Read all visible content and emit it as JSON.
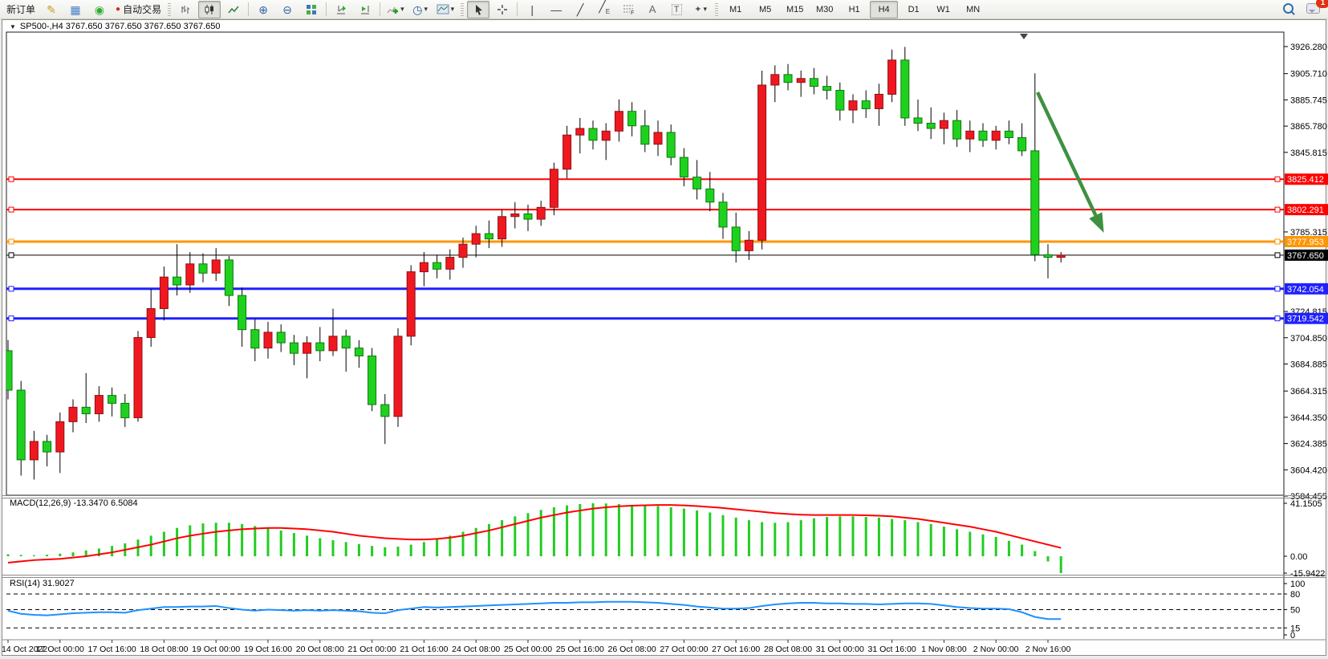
{
  "toolbar": {
    "new_order_label": "新订单",
    "autotrading_label": "自动交易",
    "timeframes": [
      "M1",
      "M5",
      "M15",
      "M30",
      "H1",
      "H4",
      "D1",
      "W1",
      "MN"
    ],
    "active_timeframe": "H4",
    "notification_badge": "1"
  },
  "chart_window": {
    "title": "SP500-,H4  3767.650 3767.650 3767.650 3767.650"
  },
  "chart_data": {
    "type": "candlestick",
    "symbol": "SP500-",
    "timeframe": "H4",
    "colors": {
      "up_candle": "#F01820",
      "down_candle": "#1FD11F",
      "macd_histogram": "#22CC22",
      "macd_signal": "#FF0000",
      "rsi_line": "#1E90FF",
      "arrow": "#3F9142"
    },
    "price_axis_ticks": [
      "3926.280",
      "3905.710",
      "3885.745",
      "3865.780",
      "3845.815",
      "3785.315",
      "3724.815",
      "3704.850",
      "3684.885",
      "3664.315",
      "3644.350",
      "3624.385",
      "3604.420",
      "3584.455"
    ],
    "time_axis_labels": [
      "14 Oct 2022",
      "17 Oct 00:00",
      "17 Oct 16:00",
      "18 Oct 08:00",
      "19 Oct 00:00",
      "19 Oct 16:00",
      "20 Oct 08:00",
      "21 Oct 00:00",
      "21 Oct 16:00",
      "24 Oct 08:00",
      "25 Oct 00:00",
      "25 Oct 16:00",
      "26 Oct 08:00",
      "27 Oct 00:00",
      "27 Oct 16:00",
      "28 Oct 08:00",
      "31 Oct 00:00",
      "31 Oct 16:00",
      "1 Nov 08:00",
      "2 Nov 00:00",
      "2 Nov 16:00"
    ],
    "bars_per_label": 4,
    "ohlc": [
      [
        3695,
        3703,
        3658,
        3665
      ],
      [
        3665,
        3672,
        3600,
        3612
      ],
      [
        3612,
        3634,
        3597,
        3626
      ],
      [
        3626,
        3631,
        3607,
        3618
      ],
      [
        3618,
        3648,
        3602,
        3641
      ],
      [
        3641,
        3658,
        3633,
        3652
      ],
      [
        3652,
        3678,
        3640,
        3647
      ],
      [
        3647,
        3668,
        3641,
        3661
      ],
      [
        3661,
        3667,
        3645,
        3655
      ],
      [
        3655,
        3662,
        3637,
        3644
      ],
      [
        3644,
        3710,
        3641,
        3705
      ],
      [
        3705,
        3742,
        3698,
        3727
      ],
      [
        3727,
        3759,
        3718,
        3751
      ],
      [
        3751,
        3776,
        3737,
        3745
      ],
      [
        3745,
        3770,
        3739,
        3761
      ],
      [
        3761,
        3769,
        3747,
        3754
      ],
      [
        3754,
        3773,
        3748,
        3764
      ],
      [
        3764,
        3767,
        3729,
        3737
      ],
      [
        3737,
        3743,
        3698,
        3711
      ],
      [
        3711,
        3719,
        3687,
        3697
      ],
      [
        3697,
        3717,
        3689,
        3709
      ],
      [
        3709,
        3715,
        3694,
        3701
      ],
      [
        3701,
        3707,
        3684,
        3693
      ],
      [
        3693,
        3706,
        3674,
        3701
      ],
      [
        3701,
        3713,
        3687,
        3695
      ],
      [
        3695,
        3727,
        3691,
        3706
      ],
      [
        3706,
        3711,
        3679,
        3697
      ],
      [
        3697,
        3703,
        3682,
        3691
      ],
      [
        3691,
        3697,
        3649,
        3654
      ],
      [
        3654,
        3662,
        3624,
        3645
      ],
      [
        3645,
        3712,
        3637,
        3706
      ],
      [
        3706,
        3760,
        3699,
        3755
      ],
      [
        3755,
        3770,
        3744,
        3762
      ],
      [
        3762,
        3768,
        3750,
        3757
      ],
      [
        3757,
        3772,
        3749,
        3766
      ],
      [
        3766,
        3781,
        3758,
        3776
      ],
      [
        3776,
        3790,
        3766,
        3784
      ],
      [
        3784,
        3794,
        3773,
        3780
      ],
      [
        3780,
        3802,
        3774,
        3797
      ],
      [
        3797,
        3808,
        3788,
        3799
      ],
      [
        3799,
        3806,
        3786,
        3795
      ],
      [
        3795,
        3809,
        3790,
        3804
      ],
      [
        3804,
        3838,
        3798,
        3833
      ],
      [
        3833,
        3866,
        3826,
        3859
      ],
      [
        3859,
        3872,
        3845,
        3864
      ],
      [
        3864,
        3870,
        3848,
        3855
      ],
      [
        3855,
        3868,
        3840,
        3862
      ],
      [
        3862,
        3886,
        3854,
        3877
      ],
      [
        3877,
        3884,
        3858,
        3866
      ],
      [
        3866,
        3878,
        3846,
        3852
      ],
      [
        3852,
        3870,
        3843,
        3861
      ],
      [
        3861,
        3867,
        3836,
        3842
      ],
      [
        3842,
        3849,
        3820,
        3827
      ],
      [
        3827,
        3840,
        3810,
        3818
      ],
      [
        3818,
        3831,
        3801,
        3808
      ],
      [
        3808,
        3815,
        3780,
        3789
      ],
      [
        3789,
        3800,
        3762,
        3771
      ],
      [
        3771,
        3786,
        3764,
        3779
      ],
      [
        3779,
        3908,
        3772,
        3897
      ],
      [
        3897,
        3912,
        3884,
        3905
      ],
      [
        3905,
        3913,
        3893,
        3899
      ],
      [
        3899,
        3908,
        3888,
        3902
      ],
      [
        3902,
        3910,
        3890,
        3896
      ],
      [
        3896,
        3904,
        3886,
        3893
      ],
      [
        3893,
        3899,
        3870,
        3878
      ],
      [
        3878,
        3890,
        3868,
        3885
      ],
      [
        3885,
        3893,
        3872,
        3879
      ],
      [
        3879,
        3898,
        3866,
        3890
      ],
      [
        3890,
        3924,
        3884,
        3916
      ],
      [
        3916,
        3926,
        3866,
        3872
      ],
      [
        3872,
        3886,
        3862,
        3868
      ],
      [
        3868,
        3880,
        3856,
        3864
      ],
      [
        3864,
        3876,
        3852,
        3870
      ],
      [
        3870,
        3878,
        3850,
        3856
      ],
      [
        3856,
        3870,
        3846,
        3862
      ],
      [
        3862,
        3868,
        3850,
        3855
      ],
      [
        3855,
        3866,
        3848,
        3862
      ],
      [
        3862,
        3870,
        3852,
        3857
      ],
      [
        3857,
        3868,
        3843,
        3847
      ],
      [
        3847,
        3906,
        3763,
        3768
      ],
      [
        3768,
        3776,
        3750,
        3766
      ],
      [
        3766,
        3770,
        3762,
        3767.65
      ]
    ],
    "horizontal_lines": [
      {
        "price": 3825.412,
        "label": "3825.412",
        "color": "#FE0000",
        "width": 2
      },
      {
        "price": 3802.291,
        "label": "3802.291",
        "color": "#FE0000",
        "width": 2
      },
      {
        "price": 3777.953,
        "label": "3777.953",
        "color": "#FF9500",
        "width": 3
      },
      {
        "price": 3767.65,
        "label": "3767.650",
        "color": "#000000",
        "width": 1
      },
      {
        "price": 3742.054,
        "label": "3742.054",
        "color": "#2020FF",
        "width": 3
      },
      {
        "price": 3719.542,
        "label": "3719.542",
        "color": "#2020FF",
        "width": 3
      }
    ],
    "current_price_label": "3767.650",
    "arrow_annotation": {
      "from_bar": 79.2,
      "from_price": 3891.5,
      "to_bar": 84.3,
      "to_price": 3784.7
    },
    "macd": {
      "label": "MACD(12,26,9) -13.3470 6.5084",
      "params": "12,26,9",
      "main_value": -13.347,
      "signal_value": 6.5084,
      "axis_labels": [
        "41.1505",
        "0.00",
        "-15.9422"
      ],
      "axis_values": [
        41.1505,
        0,
        -15.9422
      ],
      "histogram": [
        1.5,
        1,
        0.8,
        1.2,
        2,
        3,
        4.5,
        6,
        8,
        10,
        13,
        16,
        19,
        22,
        24,
        25.5,
        26,
        26,
        25,
        23.5,
        22,
        20,
        18,
        16,
        14,
        12.5,
        11,
        9.5,
        8,
        7,
        7.5,
        9,
        11,
        13.5,
        16,
        19,
        22,
        25,
        28,
        31,
        33.5,
        36,
        38,
        39.5,
        40.5,
        41.15,
        41,
        40.5,
        40,
        39.5,
        39,
        38,
        37,
        35.5,
        34,
        32,
        30,
        28,
        26.5,
        26,
        26.5,
        28,
        29.5,
        30.5,
        31,
        31,
        30.5,
        30,
        29,
        28,
        26.5,
        25,
        23,
        21,
        19,
        17,
        15,
        12,
        9,
        4,
        -4,
        -13.35
      ],
      "signal": [
        -5,
        -4,
        -3,
        -2.5,
        -2,
        -1,
        0,
        1.5,
        3,
        5,
        7,
        9,
        11.5,
        14,
        16,
        17.5,
        19,
        20,
        21,
        21.5,
        22,
        22,
        21.5,
        21,
        20,
        19,
        17.5,
        16,
        15,
        14,
        13.5,
        13,
        13,
        13.5,
        14.5,
        16,
        18,
        20,
        22.5,
        25,
        27.5,
        30,
        32,
        34,
        35.5,
        37,
        38,
        38.8,
        39.3,
        39.6,
        39.8,
        39.8,
        39.5,
        39,
        38.3,
        37.5,
        36.5,
        35.5,
        34.5,
        33.5,
        32.8,
        32.3,
        32,
        32,
        32,
        32,
        31.8,
        31.5,
        31,
        30,
        29,
        27.5,
        26,
        24.5,
        23,
        21,
        19,
        16.5,
        14,
        11.5,
        9,
        6.5
      ]
    },
    "rsi": {
      "label": "RSI(14) 31.9027",
      "period": 14,
      "value": 31.9027,
      "axis_labels": [
        "100",
        "80",
        "50",
        "15",
        "0"
      ],
      "axis_values": [
        100,
        80,
        50,
        15,
        0
      ],
      "levels": [
        80,
        50,
        15
      ],
      "values": [
        48,
        42,
        40,
        39,
        41,
        43,
        44,
        45,
        45,
        44,
        49,
        52,
        55,
        55,
        56,
        56,
        57,
        53,
        50,
        48,
        50,
        49,
        48,
        49,
        48,
        49,
        48,
        47,
        44,
        43,
        49,
        52,
        55,
        54,
        55,
        56,
        57,
        58,
        59,
        60,
        61,
        62,
        63,
        63,
        64,
        64,
        65,
        65,
        65,
        64,
        63,
        61,
        59,
        56,
        54,
        52,
        52,
        53,
        57,
        60,
        62,
        63,
        63,
        62,
        62,
        61,
        61,
        60,
        61,
        62,
        62,
        61,
        58,
        55,
        53,
        52,
        52,
        51,
        45,
        36,
        32,
        31.9
      ]
    }
  }
}
